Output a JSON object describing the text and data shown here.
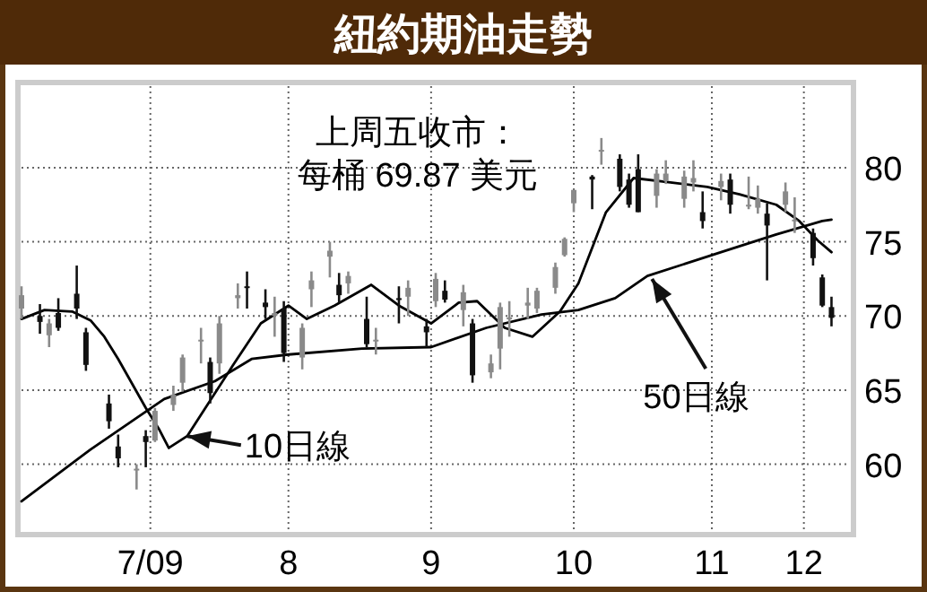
{
  "chart_data": {
    "type": "candlestick",
    "title": "紐約期油走勢",
    "annotations": [
      "上周五收市：",
      "每桶 69.87 美元",
      {
        "text": "10日線",
        "x": "2009-07-24",
        "y": 61.9
      },
      {
        "text": "50日線",
        "x": "2009-11-02",
        "y": 72.5
      }
    ],
    "colors": [
      "#8a8a8a",
      "#111111",
      "#8a8a8a",
      "#111111",
      "#111111",
      "#111111",
      "#111111",
      "#111111",
      "#8a8a8a",
      "#111111",
      "#8a8a8a",
      "#8a8a8a",
      "#8a8a8a",
      "#8a8a8a",
      "#111111",
      "#8a8a8a",
      "#8a8a8a",
      "#111111",
      "#111111",
      "#8a8a8a",
      "#111111",
      "#8a8a8a",
      "#8a8a8a",
      "#8a8a8a",
      "#111111",
      "#8a8a8a",
      "#111111",
      "#8a8a8a",
      "#111111",
      "#8a8a8a",
      "#111111",
      "#8a8a8a",
      "#111111",
      "#8a8a8a",
      "#111111",
      "#8a8a8a",
      "#8a8a8a",
      "#8a8a8a",
      "#8a8a8a",
      "#8a8a8a",
      "#8a8a8a",
      "#8a8a8a",
      "#8a8a8a",
      "#111111",
      "#8a8a8a",
      "#111111",
      "#111111",
      "#111111",
      "#8a8a8a",
      "#8a8a8a",
      "#8a8a8a",
      "#8a8a8a",
      "#111111",
      "#8a8a8a",
      "#111111",
      "#8a8a8a",
      "#8a8a8a",
      "#111111",
      "#8a8a8a",
      "#8a8a8a",
      "#111111",
      "#111111",
      "#111111"
    ],
    "x": [
      "2009-06-18",
      "2009-06-22",
      "2009-06-24",
      "2009-06-26",
      "2009-06-30",
      "2009-07-02",
      "2009-07-07",
      "2009-07-09",
      "2009-07-13",
      "2009-07-15",
      "2009-07-17",
      "2009-07-21",
      "2009-07-23",
      "2009-07-27",
      "2009-07-29",
      "2009-07-31",
      "2009-08-04",
      "2009-08-06",
      "2009-08-10",
      "2009-08-12",
      "2009-08-14",
      "2009-08-18",
      "2009-08-20",
      "2009-08-24",
      "2009-08-26",
      "2009-08-28",
      "2009-09-01",
      "2009-09-03",
      "2009-09-08",
      "2009-09-10",
      "2009-09-14",
      "2009-09-16",
      "2009-09-18",
      "2009-09-22",
      "2009-09-24",
      "2009-09-28",
      "2009-09-30",
      "2009-10-02",
      "2009-10-06",
      "2009-10-08",
      "2009-10-12",
      "2009-10-14",
      "2009-10-16",
      "2009-10-20",
      "2009-10-22",
      "2009-10-26",
      "2009-10-28",
      "2009-10-30",
      "2009-11-03",
      "2009-11-05",
      "2009-11-09",
      "2009-11-11",
      "2009-11-13",
      "2009-11-17",
      "2009-11-19",
      "2009-11-23",
      "2009-11-25",
      "2009-11-27",
      "2009-12-01",
      "2009-12-03",
      "2009-12-07",
      "2009-12-09",
      "2009-12-11"
    ],
    "ohlc": [
      [
        70.5,
        72.0,
        69.8,
        71.4
      ],
      [
        70.0,
        70.8,
        68.8,
        69.6
      ],
      [
        68.7,
        69.8,
        67.9,
        69.5
      ],
      [
        70.2,
        71.2,
        69.0,
        69.2
      ],
      [
        71.5,
        73.4,
        69.8,
        70.5
      ],
      [
        68.9,
        69.2,
        66.3,
        66.7
      ],
      [
        64.1,
        64.7,
        62.4,
        62.9
      ],
      [
        61.2,
        62.0,
        59.8,
        60.4
      ],
      [
        59.7,
        60.0,
        58.3,
        59.7
      ],
      [
        61.9,
        62.3,
        59.8,
        61.5
      ],
      [
        61.6,
        63.8,
        61.5,
        63.6
      ],
      [
        64.0,
        65.3,
        63.6,
        64.7
      ],
      [
        65.5,
        67.4,
        64.9,
        67.2
      ],
      [
        68.4,
        69.2,
        66.8,
        68.4
      ],
      [
        66.9,
        67.2,
        64.1,
        64.8
      ],
      [
        66.8,
        70.0,
        66.1,
        69.5
      ],
      [
        71.2,
        72.2,
        70.5,
        71.4
      ],
      [
        72.0,
        73.0,
        70.5,
        71.9
      ],
      [
        70.9,
        71.8,
        69.8,
        70.6
      ],
      [
        70.0,
        71.3,
        68.6,
        70.2
      ],
      [
        70.5,
        71.0,
        66.9,
        67.5
      ],
      [
        67.2,
        69.5,
        66.4,
        69.2
      ],
      [
        71.8,
        73.0,
        70.6,
        72.4
      ],
      [
        74.0,
        75.0,
        72.6,
        74.4
      ],
      [
        72.1,
        72.9,
        70.9,
        71.4
      ],
      [
        72.2,
        73.0,
        71.5,
        72.7
      ],
      [
        69.8,
        71.3,
        67.9,
        68.1
      ],
      [
        68.3,
        69.2,
        67.4,
        68.4
      ],
      [
        71.2,
        72.0,
        69.5,
        71.1
      ],
      [
        71.3,
        72.4,
        70.0,
        71.9
      ],
      [
        69.3,
        69.8,
        67.9,
        68.9
      ],
      [
        71.0,
        72.9,
        70.6,
        72.5
      ],
      [
        71.7,
        72.4,
        70.9,
        71.1
      ],
      [
        70.4,
        72.1,
        69.3,
        71.6
      ],
      [
        69.5,
        69.8,
        65.5,
        66.0
      ],
      [
        66.2,
        67.4,
        65.8,
        66.8
      ],
      [
        67.8,
        70.9,
        66.4,
        70.6
      ],
      [
        69.9,
        71.0,
        68.6,
        69.9
      ],
      [
        70.7,
        71.9,
        69.8,
        70.9
      ],
      [
        70.5,
        71.9,
        70.2,
        71.7
      ],
      [
        71.9,
        73.6,
        71.5,
        73.3
      ],
      [
        74.1,
        75.3,
        74.0,
        75.2
      ],
      [
        77.6,
        78.5,
        77.0,
        78.5
      ],
      [
        79.4,
        79.5,
        77.2,
        79.2
      ],
      [
        81.1,
        82.0,
        80.2,
        81.2
      ],
      [
        80.6,
        80.9,
        78.4,
        78.7
      ],
      [
        79.2,
        79.6,
        77.3,
        77.5
      ],
      [
        79.9,
        80.9,
        77.0,
        77.0
      ],
      [
        78.1,
        79.9,
        77.3,
        79.6
      ],
      [
        79.1,
        80.5,
        78.9,
        79.6
      ],
      [
        77.9,
        79.8,
        77.3,
        79.4
      ],
      [
        79.0,
        80.5,
        78.4,
        79.3
      ],
      [
        77.0,
        78.4,
        75.9,
        76.4
      ],
      [
        78.7,
        79.6,
        77.8,
        79.1
      ],
      [
        79.2,
        79.6,
        76.9,
        77.5
      ],
      [
        77.5,
        79.4,
        77.2,
        77.5
      ],
      [
        77.3,
        78.8,
        76.9,
        77.9
      ],
      [
        76.9,
        77.6,
        72.4,
        76.1
      ],
      [
        77.5,
        79.0,
        77.0,
        78.4
      ],
      [
        76.5,
        78.0,
        75.6,
        76.5
      ],
      [
        75.6,
        75.9,
        73.4,
        73.9
      ],
      [
        72.6,
        72.8,
        70.6,
        70.7
      ],
      [
        70.6,
        71.3,
        69.3,
        69.87
      ]
    ],
    "series": [
      {
        "type": "line",
        "color": "#000000",
        "x": [
          "2009-06-18",
          "2009-06-23",
          "2009-06-29",
          "2009-07-03",
          "2009-07-06",
          "2009-07-09",
          "2009-07-15",
          "2009-07-18",
          "2009-07-20",
          "2009-07-24",
          "2009-07-29",
          "2009-08-03",
          "2009-08-09",
          "2009-08-15",
          "2009-08-19",
          "2009-08-25",
          "2009-09-02",
          "2009-09-08",
          "2009-09-15",
          "2009-09-21",
          "2009-09-25",
          "2009-10-01",
          "2009-10-07",
          "2009-10-13",
          "2009-10-17",
          "2009-10-23",
          "2009-10-29",
          "2009-11-06",
          "2009-11-14",
          "2009-11-21",
          "2009-11-29",
          "2009-12-04",
          "2009-12-08",
          "2009-12-11"
        ],
        "values": [
          69.8,
          70.4,
          70.3,
          69.7,
          68.6,
          67.1,
          63.8,
          62.3,
          61.1,
          61.9,
          64.3,
          66.7,
          69.5,
          70.7,
          69.8,
          70.7,
          72.1,
          70.7,
          69.5,
          70.9,
          71.0,
          69.2,
          68.6,
          70.3,
          72.2,
          77.0,
          79.3,
          79.0,
          78.7,
          78.2,
          77.5,
          76.4,
          75.1,
          74.3
        ]
      },
      {
        "type": "line",
        "color": "#000000",
        "x": [
          "2009-06-18",
          "2009-07-03",
          "2009-07-19",
          "2009-07-30",
          "2009-08-07",
          "2009-08-15",
          "2009-08-31",
          "2009-09-15",
          "2009-09-27",
          "2009-10-09",
          "2009-10-17",
          "2009-10-25",
          "2009-11-01",
          "2009-11-17",
          "2009-11-29",
          "2009-12-09",
          "2009-12-11"
        ],
        "values": [
          57.5,
          61.0,
          64.4,
          65.6,
          67.1,
          67.4,
          67.8,
          67.9,
          69.2,
          70.1,
          70.4,
          71.2,
          72.7,
          74.3,
          75.5,
          76.4,
          76.5
        ]
      }
    ],
    "xlim": [
      "2009-06-18",
      "2009-12-15"
    ],
    "xticks": [
      {
        "value": "2009-07-16",
        "label": "7/09"
      },
      {
        "value": "2009-08-15",
        "label": "8"
      },
      {
        "value": "2009-09-15",
        "label": "9"
      },
      {
        "value": "2009-10-16",
        "label": "10"
      },
      {
        "value": "2009-11-15",
        "label": "11"
      },
      {
        "value": "2009-12-05",
        "label": "12"
      }
    ],
    "ylim": [
      55.5,
      85.5
    ],
    "yticks": [
      60,
      65,
      70,
      75,
      80
    ],
    "grid": true
  }
}
